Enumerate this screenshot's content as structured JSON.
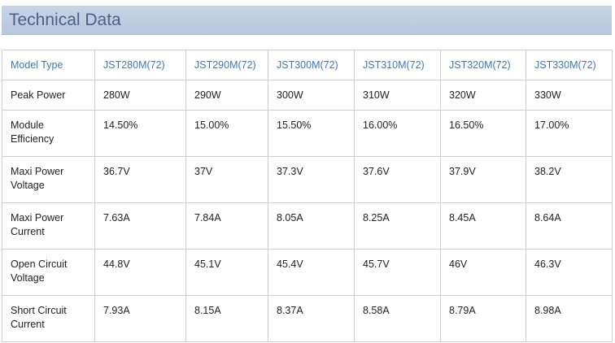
{
  "section": {
    "title": "Technical Data"
  },
  "table": {
    "header": [
      "Model Type",
      "JST280M(72)",
      "JST290M(72)",
      "JST300M(72)",
      "JST310M(72)",
      "JST320M(72)",
      "JST330M(72)"
    ],
    "rows": [
      [
        "Peak Power",
        "280W",
        "290W",
        "300W",
        "310W",
        "320W",
        "330W"
      ],
      [
        "Module\nEfficiency",
        "14.50%",
        "15.00%",
        "15.50%",
        "16.00%",
        "16.50%",
        "17.00%"
      ],
      [
        "Maxi Power\nVoltage",
        "36.7V",
        "37V",
        "37.3V",
        "37.6V",
        "37.9V",
        "38.2V"
      ],
      [
        "Maxi Power\nCurrent",
        "7.63A",
        "7.84A",
        "8.05A",
        "8.25A",
        "8.45A",
        "8.64A"
      ],
      [
        "Open Circuit\nVoltage",
        "44.8V",
        "45.1V",
        "45.4V",
        "45.7V",
        "46V",
        "46.3V"
      ],
      [
        "Short Circuit\nCurrent",
        "7.93A",
        "8.15A",
        "8.37A",
        "8.58A",
        "8.79A",
        "8.98A"
      ]
    ]
  },
  "colors": {
    "header_bg": "#bccae0",
    "header_text": "#4a6287",
    "link_blue": "#3a78c2",
    "border": "#cfcfcf"
  }
}
